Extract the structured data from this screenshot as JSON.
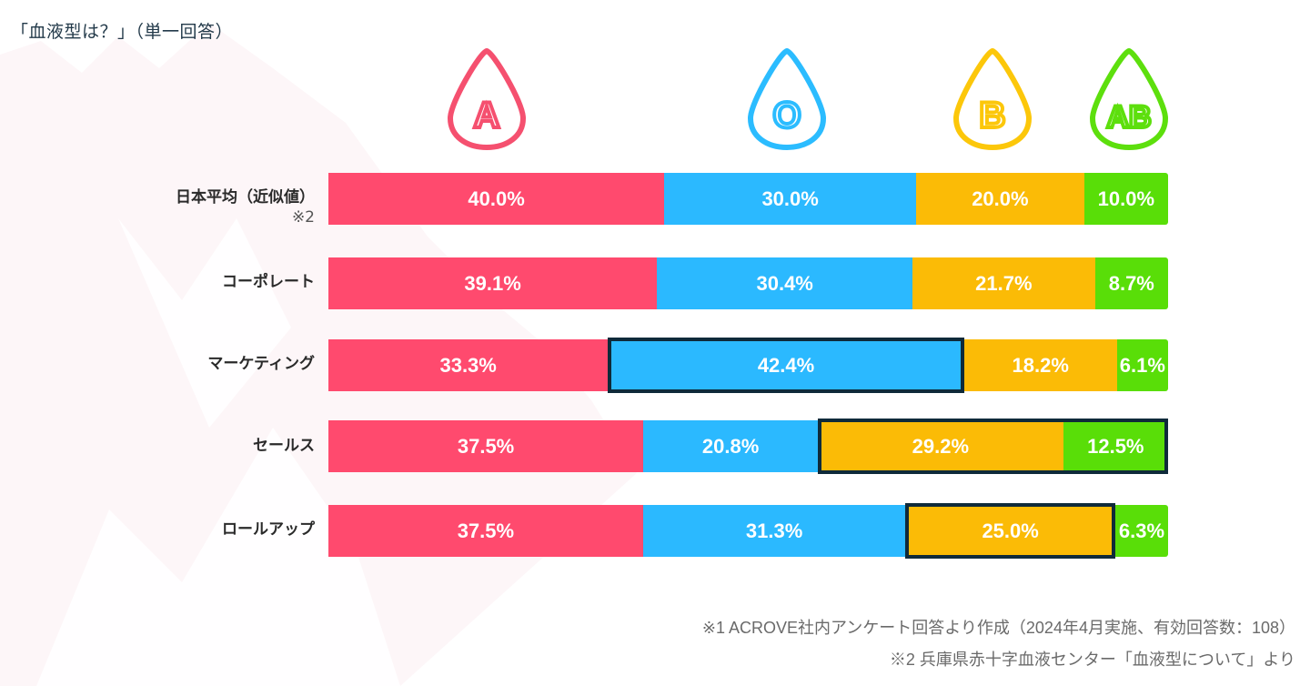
{
  "chart_data": {
    "type": "bar",
    "orientation": "horizontal",
    "stacked": true,
    "title": "「血液型は？」（単一回答）",
    "xlabel": "",
    "ylabel": "",
    "xlim": [
      0,
      100
    ],
    "grid": false,
    "legend_placement": "top",
    "categories": [
      "日本平均（近似値）",
      "コーポレート",
      "マーケティング",
      "セールス",
      "ロールアップ"
    ],
    "category_footnotes": [
      "※2",
      "",
      "",
      "",
      ""
    ],
    "series": [
      {
        "name": "A",
        "color": "#ff4a6e",
        "values": [
          40.0,
          39.1,
          33.3,
          37.5,
          37.5
        ]
      },
      {
        "name": "O",
        "color": "#2bb9ff",
        "values": [
          30.0,
          30.4,
          42.4,
          20.8,
          31.3
        ]
      },
      {
        "name": "B",
        "color": "#fbbb06",
        "values": [
          20.0,
          21.7,
          18.2,
          29.2,
          25.0
        ]
      },
      {
        "name": "AB",
        "color": "#59de08",
        "values": [
          10.0,
          8.7,
          6.1,
          12.5,
          6.3
        ]
      }
    ],
    "data_labels": [
      [
        "40.0%",
        "30.0%",
        "20.0%",
        "10.0%"
      ],
      [
        "39.1%",
        "30.4%",
        "21.7%",
        "8.7%"
      ],
      [
        "33.3%",
        "42.4%",
        "18.2%",
        "6.1%"
      ],
      [
        "37.5%",
        "20.8%",
        "29.2%",
        "12.5%"
      ],
      [
        "37.5%",
        "31.3%",
        "25.0%",
        "6.3%"
      ]
    ],
    "highlights": [
      {
        "category_index": 2,
        "series": [
          "O"
        ]
      },
      {
        "category_index": 3,
        "series": [
          "B",
          "AB"
        ]
      },
      {
        "category_index": 4,
        "series": [
          "B"
        ]
      }
    ],
    "annotations": [
      "※1 ACROVE社内アンケート回答より作成（2024年4月実施、有効回答数：108）",
      "※2 兵庫県赤十字血液センター「血液型について」より"
    ]
  },
  "header": {
    "title": "「血液型は？」（単一回答）"
  },
  "legend": [
    {
      "label": "A",
      "icon": "blood-drop-icon",
      "color": "#f5506f"
    },
    {
      "label": "O",
      "icon": "blood-drop-icon",
      "color": "#2bbcff"
    },
    {
      "label": "B",
      "icon": "blood-drop-icon",
      "color": "#fcc70a"
    },
    {
      "label": "AB",
      "icon": "blood-drop-icon",
      "color": "#5ddf0d"
    }
  ],
  "footnotes": [
    "※1 ACROVE社内アンケート回答より作成（2024年4月実施、有効回答数：108）",
    "※2 兵庫県赤十字血液センター「血液型について」より"
  ],
  "rows": [
    {
      "label": "日本平均（近似値）",
      "sub": "※2"
    },
    {
      "label": "コーポレート",
      "sub": ""
    },
    {
      "label": "マーケティング",
      "sub": ""
    },
    {
      "label": "セールス",
      "sub": ""
    },
    {
      "label": "ロールアップ",
      "sub": ""
    }
  ]
}
